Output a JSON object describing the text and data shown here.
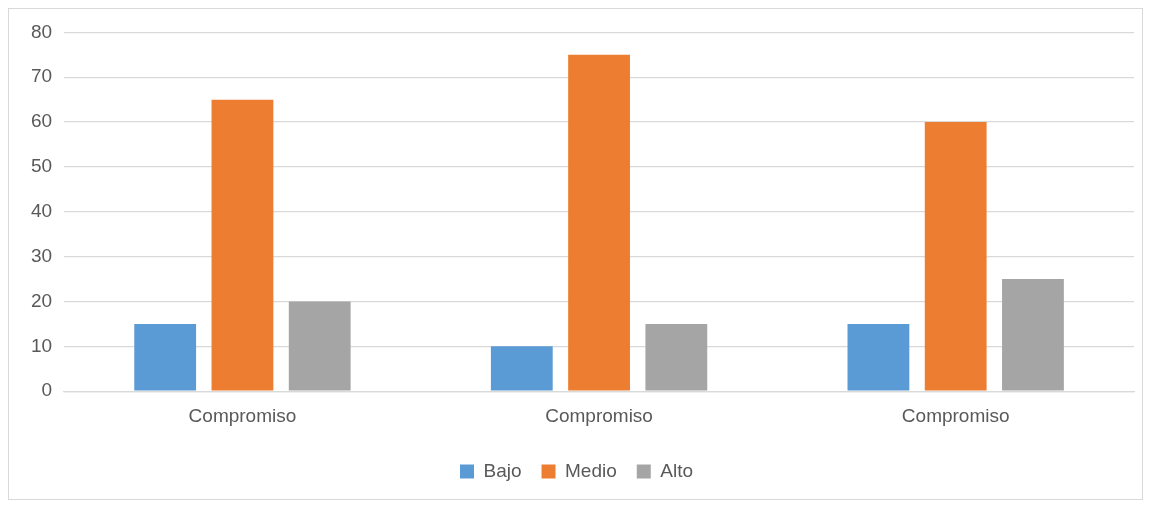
{
  "chart_data": {
    "type": "bar",
    "categories": [
      "Compromiso",
      "Compromiso",
      "Compromiso"
    ],
    "series": [
      {
        "name": "Bajo",
        "color": "#5b9bd5",
        "values": [
          15,
          10,
          15
        ]
      },
      {
        "name": "Medio",
        "color": "#ed7d31",
        "values": [
          65,
          75,
          60
        ]
      },
      {
        "name": "Alto",
        "color": "#a5a5a5",
        "values": [
          20,
          15,
          25
        ]
      }
    ],
    "ylim": [
      0,
      80
    ],
    "yticks": [
      0,
      10,
      20,
      30,
      40,
      50,
      60,
      70,
      80
    ],
    "grid": "y",
    "legend": "bottom"
  }
}
